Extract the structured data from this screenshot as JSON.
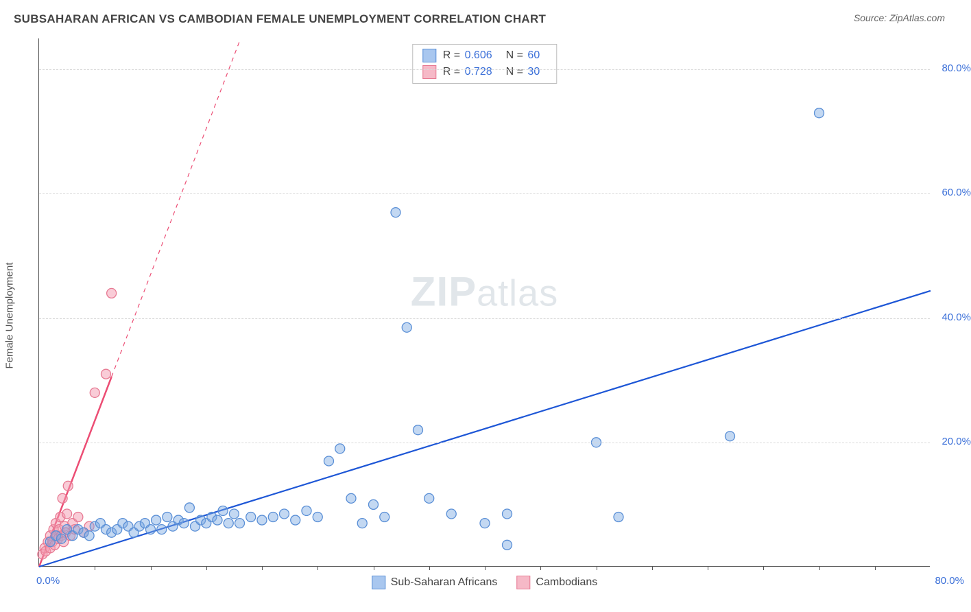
{
  "header": {
    "title": "SUBSAHARAN AFRICAN VS CAMBODIAN FEMALE UNEMPLOYMENT CORRELATION CHART",
    "source": "Source: ZipAtlas.com"
  },
  "watermark": {
    "zip": "ZIP",
    "atlas": "atlas"
  },
  "axes": {
    "ylabel": "Female Unemployment",
    "xlim": [
      0,
      80
    ],
    "ylim": [
      0,
      85
    ],
    "y_ticks": [
      20,
      40,
      60,
      80
    ],
    "y_tick_labels": [
      "20.0%",
      "40.0%",
      "60.0%",
      "80.0%"
    ],
    "x_min_label": "0.0%",
    "x_max_label": "80.0%",
    "x_minor_ticks": [
      5,
      10,
      15,
      20,
      25,
      30,
      35,
      40,
      45,
      50,
      55,
      60,
      65,
      70,
      75
    ],
    "label_fontsize": 15,
    "axis_label_color": "#3a6fd8",
    "grid_color": "#d8d8d8"
  },
  "stats_legend": {
    "rows": [
      {
        "swatch_fill": "#a9c7ef",
        "swatch_border": "#5a8fd6",
        "r_label": "R =",
        "r": "0.606",
        "n_label": "N =",
        "n": "60"
      },
      {
        "swatch_fill": "#f6b9c7",
        "swatch_border": "#e77a93",
        "r_label": "R =",
        "r": "0.728",
        "n_label": "N =",
        "n": "30"
      }
    ]
  },
  "bottom_legend": {
    "items": [
      {
        "swatch_fill": "#a9c7ef",
        "swatch_border": "#5a8fd6",
        "label": "Sub-Saharan Africans"
      },
      {
        "swatch_fill": "#f6b9c7",
        "swatch_border": "#e77a93",
        "label": "Cambodians"
      }
    ]
  },
  "series": {
    "blue": {
      "name": "Sub-Saharan Africans",
      "marker_fill": "rgba(122,168,226,0.45)",
      "marker_stroke": "#5a8fd6",
      "marker_r": 7,
      "trend_color": "#1d56d6",
      "trend_width": 2.2,
      "trend_solid_end_x": 80,
      "trend_slope": 0.555,
      "points": [
        [
          1,
          4
        ],
        [
          1.5,
          5
        ],
        [
          2,
          4.5
        ],
        [
          2.5,
          6
        ],
        [
          3,
          5
        ],
        [
          3.5,
          6
        ],
        [
          4,
          5.5
        ],
        [
          4.5,
          5
        ],
        [
          5,
          6.5
        ],
        [
          5.5,
          7
        ],
        [
          6,
          6
        ],
        [
          6.5,
          5.5
        ],
        [
          7,
          6
        ],
        [
          7.5,
          7
        ],
        [
          8,
          6.5
        ],
        [
          8.5,
          5.5
        ],
        [
          9,
          6.5
        ],
        [
          9.5,
          7
        ],
        [
          10,
          6
        ],
        [
          10.5,
          7.5
        ],
        [
          11,
          6
        ],
        [
          11.5,
          8
        ],
        [
          12,
          6.5
        ],
        [
          12.5,
          7.5
        ],
        [
          13,
          7
        ],
        [
          13.5,
          9.5
        ],
        [
          14,
          6.5
        ],
        [
          14.5,
          7.5
        ],
        [
          15,
          7
        ],
        [
          15.5,
          8
        ],
        [
          16,
          7.5
        ],
        [
          16.5,
          9
        ],
        [
          17,
          7
        ],
        [
          17.5,
          8.5
        ],
        [
          18,
          7
        ],
        [
          19,
          8
        ],
        [
          20,
          7.5
        ],
        [
          21,
          8
        ],
        [
          22,
          8.5
        ],
        [
          23,
          7.5
        ],
        [
          24,
          9
        ],
        [
          25,
          8
        ],
        [
          26,
          17
        ],
        [
          27,
          19
        ],
        [
          28,
          11
        ],
        [
          29,
          7
        ],
        [
          30,
          10
        ],
        [
          31,
          8
        ],
        [
          32,
          57
        ],
        [
          33,
          38.5
        ],
        [
          34,
          22
        ],
        [
          35,
          11
        ],
        [
          37,
          8.5
        ],
        [
          40,
          7
        ],
        [
          42,
          3.5
        ],
        [
          42,
          8.5
        ],
        [
          50,
          20
        ],
        [
          52,
          8
        ],
        [
          62,
          21
        ],
        [
          70,
          73
        ]
      ]
    },
    "pink": {
      "name": "Cambodians",
      "marker_fill": "rgba(244,154,176,0.5)",
      "marker_stroke": "#e77a93",
      "marker_r": 7,
      "trend_color": "#ec4d74",
      "trend_width": 2.5,
      "trend_solid_end_x": 6.5,
      "trend_dashed_end_x": 18,
      "trend_slope": 4.7,
      "points": [
        [
          0.3,
          2
        ],
        [
          0.5,
          3
        ],
        [
          0.6,
          2.5
        ],
        [
          0.8,
          4
        ],
        [
          1,
          3
        ],
        [
          1,
          5
        ],
        [
          1.2,
          4
        ],
        [
          1.3,
          6
        ],
        [
          1.4,
          3.5
        ],
        [
          1.5,
          7
        ],
        [
          1.6,
          5
        ],
        [
          1.7,
          4.5
        ],
        [
          1.8,
          6
        ],
        [
          1.9,
          8
        ],
        [
          2,
          5
        ],
        [
          2.1,
          11
        ],
        [
          2.2,
          4
        ],
        [
          2.3,
          6.5
        ],
        [
          2.4,
          5.5
        ],
        [
          2.5,
          8.5
        ],
        [
          2.6,
          13
        ],
        [
          2.8,
          5
        ],
        [
          3,
          7
        ],
        [
          3.2,
          6
        ],
        [
          3.5,
          8
        ],
        [
          4,
          5.5
        ],
        [
          5,
          28
        ],
        [
          6,
          31
        ],
        [
          6.5,
          44
        ],
        [
          4.5,
          6.5
        ]
      ]
    }
  }
}
